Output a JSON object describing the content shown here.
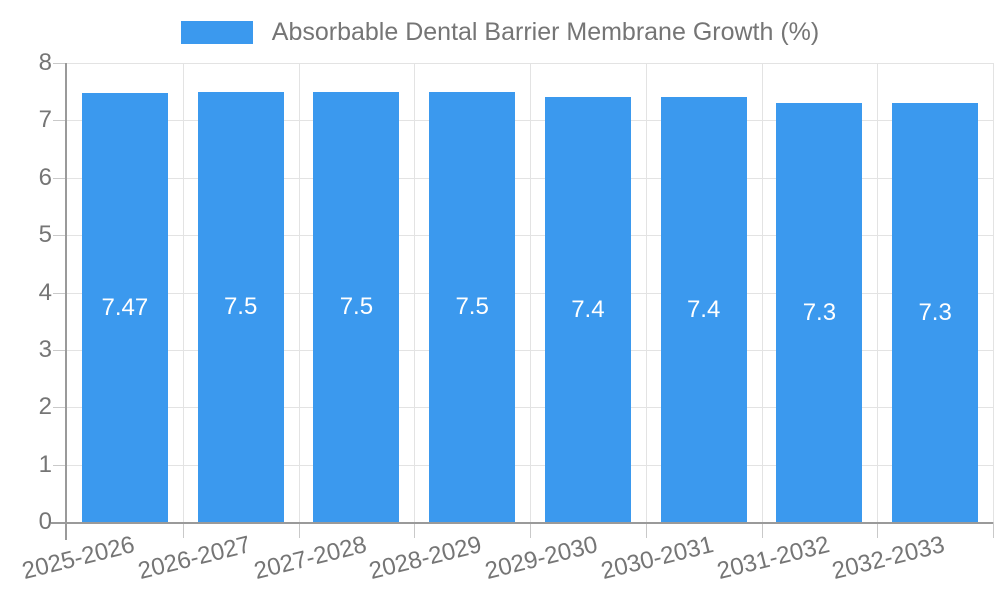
{
  "legend": {
    "label": "Absorbable Dental Barrier Membrane Growth (%)"
  },
  "chart_data": {
    "type": "bar",
    "title": "Absorbable Dental Barrier Membrane Growth (%)",
    "categories": [
      "2025-2026",
      "2026-2027",
      "2027-2028",
      "2028-2029",
      "2029-2030",
      "2030-2031",
      "2031-2032",
      "2032-2033"
    ],
    "values": [
      7.47,
      7.5,
      7.5,
      7.5,
      7.4,
      7.4,
      7.3,
      7.3
    ],
    "bar_labels": [
      "7.47",
      "7.5",
      "7.5",
      "7.5",
      "7.4",
      "7.4",
      "7.3",
      "7.3"
    ],
    "xlabel": "",
    "ylabel": "",
    "ylim": [
      0,
      8
    ],
    "yticks": [
      0,
      1,
      2,
      3,
      4,
      5,
      6,
      7,
      8
    ],
    "grid": true,
    "legend_position": "top",
    "colors": {
      "bar": "#3b99ee",
      "bar_label_text": "#ffffff",
      "axis_text": "#757575",
      "grid_line": "#e3e3e3",
      "tick_line": "#c9c9c9",
      "axis_line": "#9a9a9a",
      "background": "#ffffff"
    }
  }
}
